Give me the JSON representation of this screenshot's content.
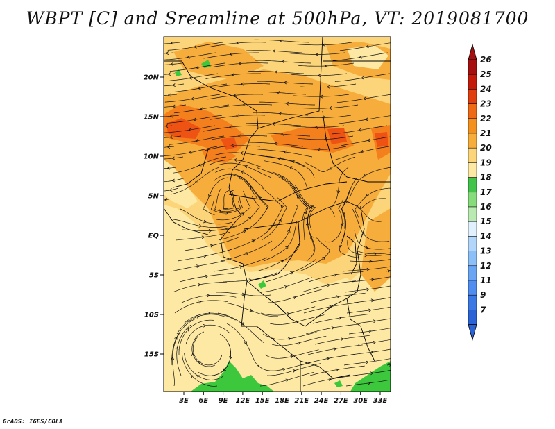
{
  "title": "WBPT [C] and Sreamline at 500hPa, VT: 2019081700",
  "credit": "GrADS: IGES/COLA",
  "map": {
    "lat_labels": [
      "20N",
      "15N",
      "10N",
      "5N",
      "EQ",
      "5S",
      "10S",
      "15S"
    ],
    "lon_labels": [
      "3E",
      "6E",
      "9E",
      "12E",
      "15E",
      "18E",
      "21E",
      "24E",
      "27E",
      "30E",
      "33E"
    ],
    "colors": {
      "c18": "#3cc73c",
      "c19": "#fde9a3",
      "c20": "#fcd57a",
      "c21": "#f7ad3c",
      "c22": "#f47f1d",
      "c23": "#ef5313"
    }
  },
  "colorbar": {
    "labels": [
      "7",
      "9",
      "11",
      "12",
      "13",
      "14",
      "15",
      "16",
      "17",
      "18",
      "19",
      "20",
      "21",
      "22",
      "23",
      "24",
      "25",
      "26"
    ],
    "colors": [
      "#2a63d6",
      "#3a78e4",
      "#4f8ef0",
      "#6aa5f4",
      "#8abff7",
      "#b2d6fa",
      "#e0f1fd",
      "#b9eab2",
      "#86dc7a",
      "#42c34a",
      "#fde9a3",
      "#fcd57a",
      "#f7ad3c",
      "#f4901e",
      "#ef6a14",
      "#e13e0f",
      "#c41a0a",
      "#a50f0f"
    ]
  }
}
